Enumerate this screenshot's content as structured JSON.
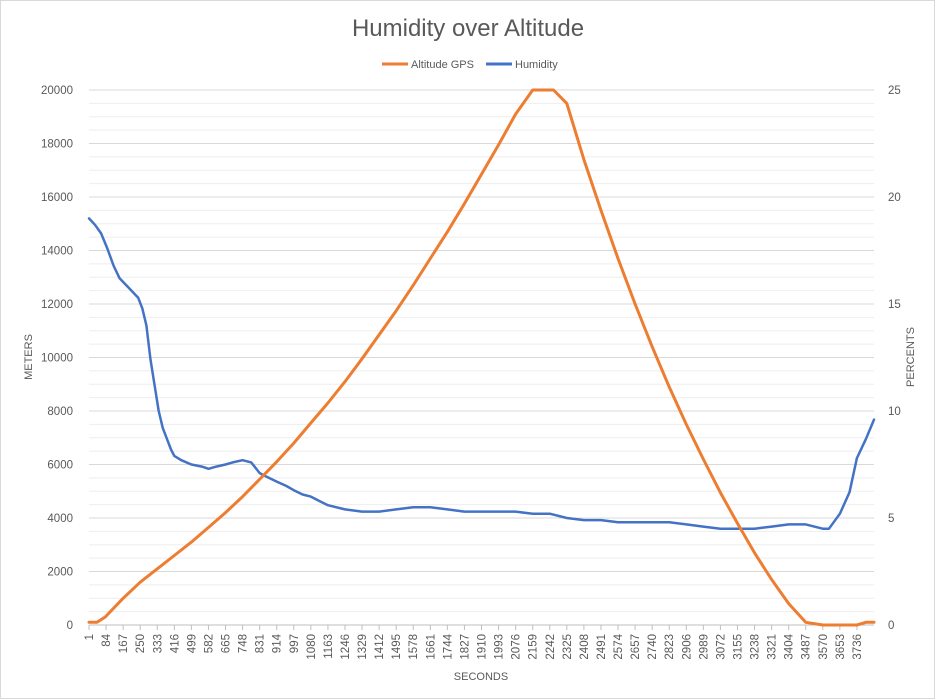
{
  "chart_data": {
    "type": "line",
    "title": "Humidity over Altitude",
    "xlabel": "SECONDS",
    "ylabel": "METERS",
    "y2label": "PERCENTS",
    "xlim": [
      1,
      3819
    ],
    "ylim": [
      0,
      20000
    ],
    "y2lim": [
      0,
      25
    ],
    "grid": true,
    "legend_position": "top-center",
    "x_tick_labels": [
      "1",
      "84",
      "167",
      "250",
      "333",
      "416",
      "499",
      "582",
      "665",
      "748",
      "831",
      "914",
      "997",
      "1080",
      "1163",
      "1246",
      "1329",
      "1412",
      "1495",
      "1578",
      "1661",
      "1744",
      "1827",
      "1910",
      "1993",
      "2076",
      "2159",
      "2242",
      "2325",
      "2408",
      "2491",
      "2574",
      "2657",
      "2740",
      "2823",
      "2906",
      "2989",
      "3072",
      "3155",
      "3238",
      "3321",
      "3404",
      "3487",
      "3570",
      "3653",
      "3736"
    ],
    "y_tick_labels": [
      "0",
      "2000",
      "4000",
      "6000",
      "8000",
      "10000",
      "12000",
      "14000",
      "16000",
      "18000",
      "20000"
    ],
    "y2_tick_labels": [
      "0",
      "5",
      "10",
      "15",
      "20",
      "25"
    ],
    "series": [
      {
        "name": "Altitude GPS",
        "axis": "left",
        "color": "#ED7D31",
        "x": [
          1,
          40,
          80,
          167,
          250,
          333,
          416,
          499,
          582,
          665,
          748,
          831,
          914,
          997,
          1080,
          1163,
          1246,
          1329,
          1412,
          1495,
          1578,
          1661,
          1744,
          1827,
          1910,
          1993,
          2076,
          2159,
          2242,
          2260,
          2325,
          2408,
          2491,
          2574,
          2657,
          2740,
          2823,
          2906,
          2989,
          3072,
          3155,
          3238,
          3321,
          3404,
          3487,
          3570,
          3653,
          3736,
          3780,
          3819
        ],
        "y": [
          100,
          100,
          300,
          1000,
          1600,
          2100,
          2600,
          3100,
          3650,
          4200,
          4800,
          5450,
          6100,
          6800,
          7550,
          8300,
          9100,
          9950,
          10850,
          11750,
          12700,
          13700,
          14700,
          15750,
          16850,
          17950,
          19100,
          20300,
          21500,
          21300,
          19500,
          17400,
          15500,
          13700,
          12000,
          10400,
          8900,
          7500,
          6200,
          4950,
          3800,
          2700,
          1700,
          800,
          100,
          -600,
          -1300,
          -2000,
          100,
          100
        ]
      },
      {
        "name": "Humidity",
        "axis": "right",
        "color": "#4472C4",
        "x": [
          1,
          30,
          60,
          90,
          120,
          150,
          180,
          210,
          240,
          260,
          280,
          300,
          320,
          340,
          360,
          380,
          400,
          416,
          450,
          499,
          550,
          582,
          620,
          665,
          700,
          748,
          790,
          831,
          870,
          914,
          960,
          997,
          1040,
          1080,
          1120,
          1163,
          1246,
          1329,
          1412,
          1495,
          1578,
          1661,
          1744,
          1827,
          1910,
          1993,
          2076,
          2159,
          2242,
          2325,
          2408,
          2491,
          2574,
          2657,
          2740,
          2823,
          2906,
          2989,
          3072,
          3155,
          3238,
          3321,
          3404,
          3487,
          3570,
          3600,
          3653,
          3700,
          3736,
          3780,
          3819
        ],
        "y": [
          19.0,
          18.7,
          18.3,
          17.6,
          16.8,
          16.2,
          15.9,
          15.6,
          15.3,
          14.8,
          14.0,
          12.4,
          11.2,
          10.0,
          9.2,
          8.7,
          8.2,
          7.9,
          7.7,
          7.5,
          7.4,
          7.3,
          7.4,
          7.5,
          7.6,
          7.7,
          7.6,
          7.1,
          6.9,
          6.7,
          6.5,
          6.3,
          6.1,
          6.0,
          5.8,
          5.6,
          5.4,
          5.3,
          5.3,
          5.4,
          5.5,
          5.5,
          5.4,
          5.3,
          5.3,
          5.3,
          5.3,
          5.2,
          5.2,
          5.0,
          4.9,
          4.9,
          4.8,
          4.8,
          4.8,
          4.8,
          4.7,
          4.6,
          4.5,
          4.5,
          4.5,
          4.6,
          4.7,
          4.7,
          4.5,
          4.5,
          5.2,
          6.2,
          7.8,
          8.7,
          9.6
        ]
      }
    ]
  }
}
